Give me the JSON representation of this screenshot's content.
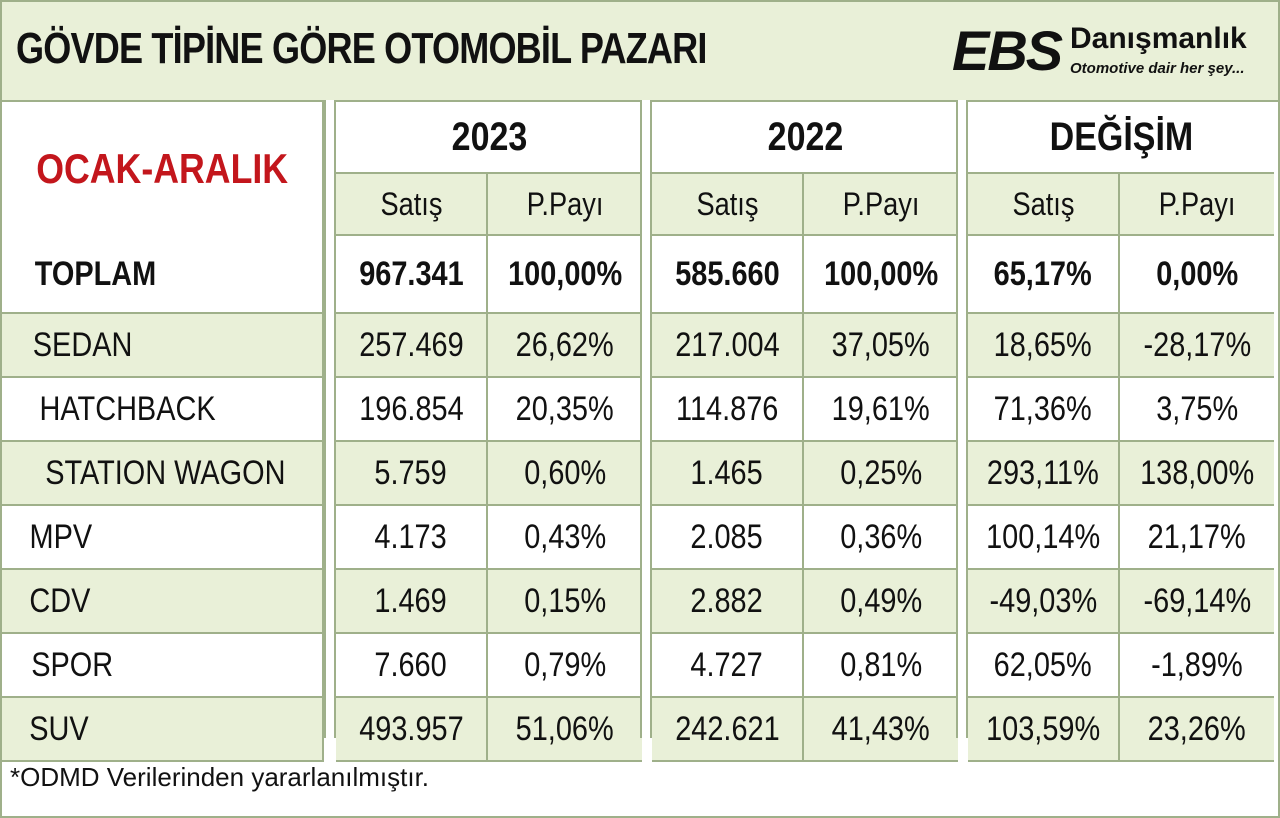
{
  "title": "GÖVDE TİPİNE GÖRE OTOMOBİL PAZARI",
  "logo": {
    "brand": "EBS",
    "name": "Danışmanlık",
    "tagline": "Otomotive dair her şey..."
  },
  "period_label": "OCAK-ARALIK",
  "groups": [
    "2023",
    "2022",
    "DEĞİŞİM"
  ],
  "subheaders": [
    "Satış",
    "P.Payı",
    "Satış",
    "P.Payı",
    "Satış",
    "P.Payı"
  ],
  "footnote": "*ODMD Verilerinden yararlanılmıştır.",
  "colors": {
    "header_bg": "#e9f0d8",
    "border": "#9fb08a",
    "period_red": "#c3161c"
  },
  "chart_data": {
    "type": "table",
    "title": "GÖVDE TİPİNE GÖRE OTOMOBİL PAZARI",
    "columns": [
      "",
      "2023 Satış",
      "2023 P.Payı",
      "2022 Satış",
      "2022 P.Payı",
      "DEĞİŞİM Satış",
      "DEĞİŞİM P.Payı"
    ],
    "rows": [
      {
        "label": "TOPLAM",
        "values": [
          "967.341",
          "100,00%",
          "585.660",
          "100,00%",
          "65,17%",
          "0,00%"
        ]
      },
      {
        "label": "SEDAN",
        "values": [
          "257.469",
          "26,62%",
          "217.004",
          "37,05%",
          "18,65%",
          "-28,17%"
        ]
      },
      {
        "label": "HATCHBACK",
        "values": [
          "196.854",
          "20,35%",
          "114.876",
          "19,61%",
          "71,36%",
          "3,75%"
        ]
      },
      {
        "label": "STATION WAGON",
        "values": [
          "5.759",
          "0,60%",
          "1.465",
          "0,25%",
          "293,11%",
          "138,00%"
        ]
      },
      {
        "label": "MPV",
        "values": [
          "4.173",
          "0,43%",
          "2.085",
          "0,36%",
          "100,14%",
          "21,17%"
        ]
      },
      {
        "label": "CDV",
        "values": [
          "1.469",
          "0,15%",
          "2.882",
          "0,49%",
          "-49,03%",
          "-69,14%"
        ]
      },
      {
        "label": "SPOR",
        "values": [
          "7.660",
          "0,79%",
          "4.727",
          "0,81%",
          "62,05%",
          "-1,89%"
        ]
      },
      {
        "label": "SUV",
        "values": [
          "493.957",
          "51,06%",
          "242.621",
          "41,43%",
          "103,59%",
          "23,26%"
        ]
      }
    ]
  }
}
